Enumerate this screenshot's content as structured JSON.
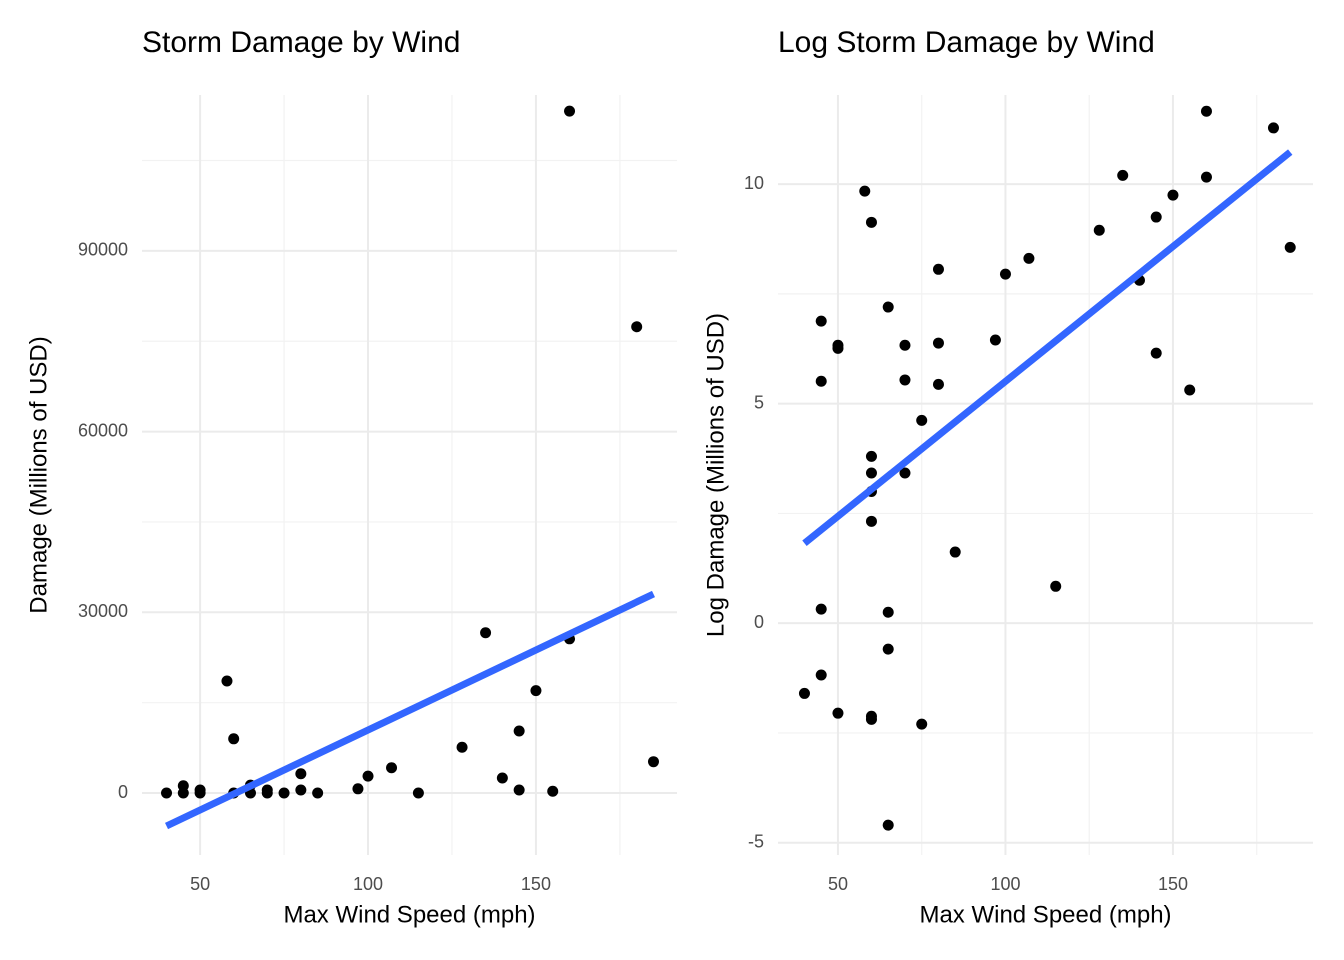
{
  "chart_data": [
    {
      "type": "scatter",
      "title": "Storm Damage by Wind",
      "x_label": "Max Wind Speed (mph)",
      "y_label": "Damage (Millions of USD)",
      "x": [
        40,
        45,
        45,
        50,
        50,
        58,
        60,
        60,
        65,
        65,
        70,
        70,
        75,
        80,
        80,
        85,
        97,
        100,
        107,
        115,
        128,
        135,
        140,
        145,
        145,
        150,
        155,
        160,
        160,
        180,
        185
      ],
      "values": [
        0,
        1200,
        0,
        500,
        0,
        18600,
        9000,
        0,
        1300,
        0,
        500,
        0,
        0,
        3200,
        500,
        0,
        700,
        2800,
        4200,
        0,
        7600,
        26600,
        2500,
        10300,
        500,
        17000,
        300,
        25600,
        113200,
        77400,
        5200
      ],
      "color": "#000000",
      "trend": {
        "x": [
          40,
          185
        ],
        "values": [
          -5480,
          33040
        ],
        "color": "#3366ff"
      },
      "xlim": [
        32.7,
        192
      ],
      "ylim": [
        -10290,
        115880
      ],
      "xticks": [
        50,
        100,
        150
      ],
      "yticks": [
        0,
        30000,
        60000,
        90000
      ],
      "grid": true
    },
    {
      "type": "scatter",
      "title": "Log Storm Damage by Wind",
      "x_label": "Max Wind Speed (mph)",
      "y_label": "Log Damage (Millions of USD)",
      "x": [
        40,
        45,
        45,
        45,
        45,
        50,
        50,
        50,
        58,
        60,
        60,
        60,
        60,
        60,
        60,
        60,
        65,
        65,
        65,
        65,
        70,
        70,
        70,
        75,
        75,
        80,
        80,
        80,
        85,
        97,
        100,
        107,
        115,
        128,
        135,
        140,
        145,
        145,
        150,
        155,
        160,
        160,
        180,
        185
      ],
      "values": [
        -1.6,
        0.32,
        -1.18,
        5.51,
        6.88,
        -2.05,
        6.33,
        6.26,
        9.84,
        9.13,
        3.8,
        3.42,
        3.0,
        2.32,
        -2.12,
        -2.19,
        7.2,
        0.25,
        -0.59,
        -4.6,
        6.33,
        5.54,
        3.42,
        4.62,
        -2.3,
        8.06,
        6.38,
        5.44,
        1.62,
        6.45,
        7.95,
        8.31,
        0.84,
        8.95,
        10.2,
        7.81,
        9.25,
        6.15,
        9.75,
        5.31,
        10.16,
        11.66,
        11.28,
        8.56
      ],
      "color": "#000000",
      "trend": {
        "x": [
          40,
          185
        ],
        "values": [
          1.82,
          10.73
        ],
        "color": "#3366ff"
      },
      "xlim": [
        32.1,
        191.8
      ],
      "ylim": [
        -5.28,
        12.03
      ],
      "xticks": [
        50,
        100,
        150
      ],
      "yticks": [
        -5,
        0,
        5,
        10
      ],
      "grid": true
    }
  ]
}
